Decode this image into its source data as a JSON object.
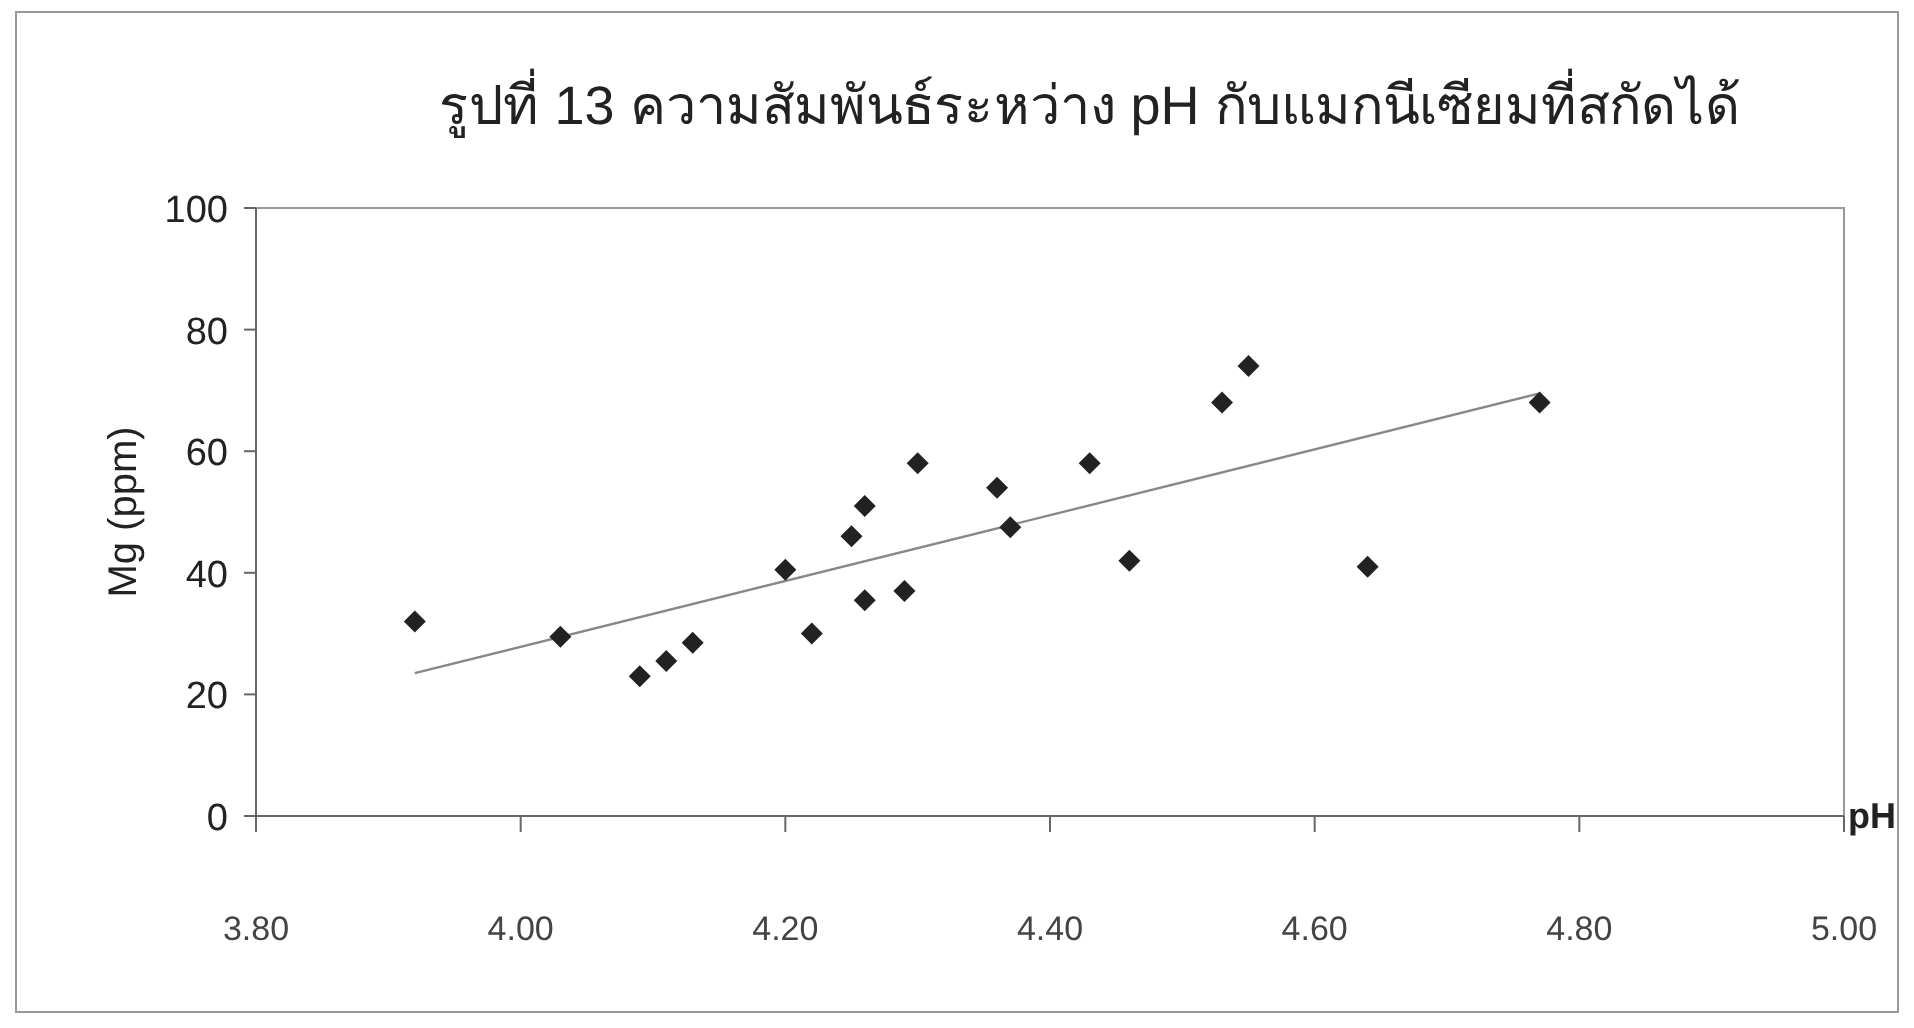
{
  "chart_data": {
    "type": "scatter",
    "title": "รูปที่ 13 ความสัมพันธ์ระหว่าง pH กับแมกนีเซียมที่สกัดได้",
    "xlabel": "pH",
    "ylabel": "Mg (ppm)",
    "xlim": [
      3.8,
      5.0
    ],
    "xticks": [
      {
        "value": 3.8,
        "label": "3.80"
      },
      {
        "value": 4.0,
        "label": "4.00"
      },
      {
        "value": 4.2,
        "label": "4.20"
      },
      {
        "value": 4.4,
        "label": "4.40"
      },
      {
        "value": 4.6,
        "label": "4.60"
      },
      {
        "value": 4.8,
        "label": "4.80"
      },
      {
        "value": 5.0,
        "label": "5.00"
      }
    ],
    "ylim": [
      0,
      100
    ],
    "yticks": [
      0,
      20,
      40,
      60,
      80,
      100
    ],
    "grid": false,
    "series": [
      {
        "type": "scatter",
        "color": "#222222",
        "marker": "diamond",
        "x": [
          3.92,
          4.03,
          4.09,
          4.11,
          4.13,
          4.2,
          4.22,
          4.25,
          4.26,
          4.26,
          4.29,
          4.3,
          4.36,
          4.37,
          4.43,
          4.46,
          4.53,
          4.55,
          4.64,
          4.77
        ],
        "values": [
          32,
          29.5,
          23,
          25.5,
          28.5,
          40.5,
          30,
          46,
          51,
          35.5,
          37,
          58,
          54,
          47.5,
          58,
          42,
          68,
          74,
          41,
          68
        ]
      },
      {
        "type": "line",
        "color": "#888888",
        "marker": "none",
        "line_style": "solid",
        "x": [
          3.92,
          4.77
        ],
        "values": [
          23.5,
          69.5
        ]
      }
    ]
  }
}
